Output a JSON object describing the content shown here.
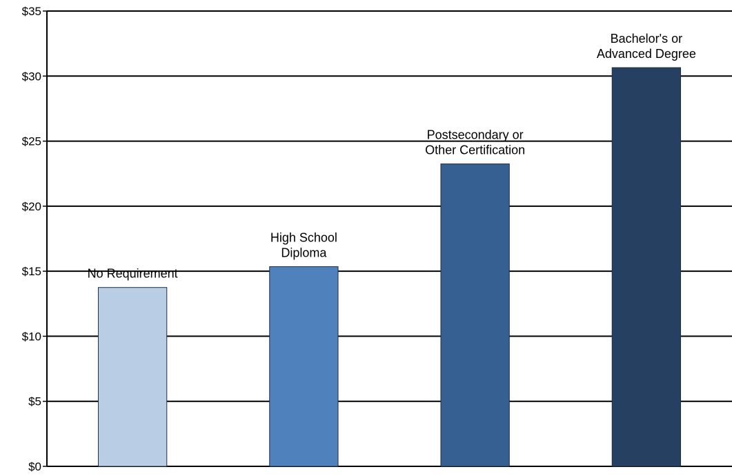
{
  "chart_data": {
    "type": "bar",
    "title": "",
    "xlabel": "",
    "ylabel": "",
    "categories": [
      [
        "No Requirement"
      ],
      [
        "High School",
        "Diploma"
      ],
      [
        "Postsecondary or",
        "Other Certification"
      ],
      [
        "Bachelor's or",
        "Advanced Degree"
      ]
    ],
    "values": [
      13.75,
      15.35,
      23.25,
      30.65
    ],
    "colors": [
      "#b9cde5",
      "#4f81bd",
      "#376092",
      "#254061"
    ],
    "ylim": [
      0,
      35
    ],
    "yticks": [
      0,
      5,
      10,
      15,
      20,
      25,
      30,
      35
    ],
    "ytick_labels": [
      "$0",
      "$5",
      "$10",
      "$15",
      "$20",
      "$25",
      "$30",
      "$35"
    ],
    "grid": true,
    "legend": "none"
  }
}
